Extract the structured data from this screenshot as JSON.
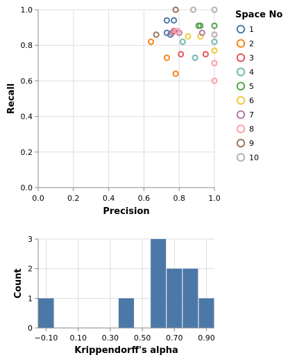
{
  "chart_data": [
    {
      "type": "scatter",
      "xlabel": "Precision",
      "ylabel": "Recall",
      "xlim": [
        0.0,
        1.0
      ],
      "ylim": [
        0.0,
        1.0
      ],
      "x_ticks": [
        "0.0",
        "0.2",
        "0.4",
        "0.6",
        "0.8",
        "1.0"
      ],
      "y_ticks": [
        "0.0",
        "0.2",
        "0.4",
        "0.6",
        "0.8",
        "1.0"
      ],
      "grid": true,
      "legend": {
        "title": "Space No",
        "position": "right"
      },
      "series": [
        {
          "name": "1",
          "color": "#4c78a8",
          "points": [
            [
              0.73,
              0.87
            ],
            [
              0.73,
              0.94
            ],
            [
              0.77,
              0.94
            ],
            [
              0.75,
              0.86
            ]
          ]
        },
        {
          "name": "2",
          "color": "#f58518",
          "points": [
            [
              0.64,
              0.82
            ],
            [
              0.73,
              0.73
            ],
            [
              0.78,
              0.64
            ]
          ]
        },
        {
          "name": "3",
          "color": "#e45756",
          "points": [
            [
              0.77,
              0.88
            ],
            [
              0.81,
              0.75
            ],
            [
              0.95,
              0.75
            ]
          ]
        },
        {
          "name": "4",
          "color": "#72b7b2",
          "points": [
            [
              0.82,
              0.82
            ],
            [
              0.89,
              0.73
            ],
            [
              1.0,
              0.82
            ]
          ]
        },
        {
          "name": "5",
          "color": "#54a24b",
          "points": [
            [
              0.91,
              0.91
            ],
            [
              0.92,
              0.91
            ],
            [
              1.0,
              0.91
            ]
          ]
        },
        {
          "name": "6",
          "color": "#eeca3b",
          "points": [
            [
              0.85,
              0.85
            ],
            [
              0.92,
              0.85
            ],
            [
              1.0,
              0.77
            ]
          ]
        },
        {
          "name": "7",
          "color": "#b279a2",
          "points": [
            [
              0.76,
              0.87
            ],
            [
              0.8,
              0.87
            ],
            [
              0.93,
              0.87
            ]
          ]
        },
        {
          "name": "8",
          "color": "#ff9da6",
          "points": [
            [
              0.79,
              0.88
            ],
            [
              1.0,
              0.7
            ],
            [
              1.0,
              0.6
            ]
          ]
        },
        {
          "name": "9",
          "color": "#9d755d",
          "points": [
            [
              0.67,
              0.86
            ],
            [
              0.78,
              1.0
            ]
          ]
        },
        {
          "name": "10",
          "color": "#bab0ac",
          "points": [
            [
              0.88,
              1.0
            ],
            [
              1.0,
              1.0
            ],
            [
              1.0,
              0.86
            ]
          ]
        }
      ]
    },
    {
      "type": "bar",
      "xlabel": "Krippendorff's alpha",
      "ylabel": "Count",
      "xlim": [
        -0.15,
        0.95
      ],
      "ylim": [
        0,
        3
      ],
      "x_ticks": [
        "−0.10",
        "0.10",
        "0.30",
        "0.50",
        "0.70",
        "0.90"
      ],
      "x_tick_values": [
        -0.1,
        0.1,
        0.3,
        0.5,
        0.7,
        0.9
      ],
      "y_ticks": [
        "0",
        "1",
        "2",
        "3"
      ],
      "grid": true,
      "color": "#4c78a8",
      "bins": [
        {
          "start": -0.15,
          "end": -0.05,
          "count": 1
        },
        {
          "start": 0.35,
          "end": 0.45,
          "count": 1
        },
        {
          "start": 0.55,
          "end": 0.65,
          "count": 3
        },
        {
          "start": 0.65,
          "end": 0.75,
          "count": 2
        },
        {
          "start": 0.75,
          "end": 0.85,
          "count": 2
        },
        {
          "start": 0.85,
          "end": 0.95,
          "count": 1
        }
      ]
    }
  ]
}
